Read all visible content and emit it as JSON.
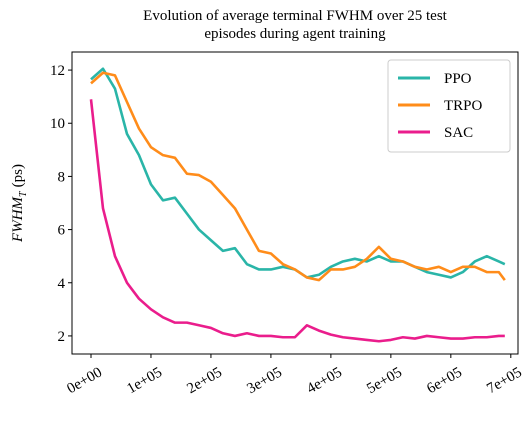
{
  "chart_data": {
    "type": "line",
    "title": [
      "Evolution of average terminal FWHM over 25 test",
      "episodes during agent training"
    ],
    "ylabel": [
      "FWHM",
      "T",
      "(ps)"
    ],
    "x": [
      0,
      20000,
      40000,
      60000,
      80000,
      100000,
      120000,
      140000,
      160000,
      180000,
      200000,
      220000,
      240000,
      260000,
      280000,
      300000,
      320000,
      340000,
      360000,
      380000,
      400000,
      420000,
      440000,
      460000,
      480000,
      500000,
      520000,
      540000,
      560000,
      580000,
      600000,
      620000,
      640000,
      660000,
      680000,
      690000
    ],
    "series": [
      {
        "name": "PPO",
        "color": "#2ab5a8",
        "values": [
          11.65,
          12.05,
          11.3,
          9.6,
          8.8,
          7.7,
          7.1,
          7.2,
          6.6,
          6.0,
          5.6,
          5.2,
          5.3,
          4.7,
          4.5,
          4.5,
          4.6,
          4.5,
          4.2,
          4.3,
          4.6,
          4.8,
          4.9,
          4.8,
          5.0,
          4.8,
          4.8,
          4.6,
          4.4,
          4.3,
          4.2,
          4.4,
          4.8,
          5.0,
          4.8,
          4.7
        ]
      },
      {
        "name": "TRPO",
        "color": "#ff8c1a",
        "values": [
          11.5,
          11.9,
          11.8,
          10.8,
          9.8,
          9.1,
          8.8,
          8.7,
          8.1,
          8.05,
          7.8,
          7.3,
          6.8,
          6.0,
          5.2,
          5.1,
          4.7,
          4.5,
          4.2,
          4.1,
          4.5,
          4.5,
          4.6,
          4.9,
          5.35,
          4.9,
          4.8,
          4.6,
          4.5,
          4.6,
          4.4,
          4.6,
          4.6,
          4.4,
          4.4,
          4.1
        ]
      },
      {
        "name": "SAC",
        "color": "#ea1d8c",
        "values": [
          10.9,
          6.8,
          5.0,
          4.0,
          3.4,
          3.0,
          2.7,
          2.5,
          2.5,
          2.4,
          2.3,
          2.1,
          2.0,
          2.1,
          2.0,
          2.0,
          1.95,
          1.95,
          2.4,
          2.2,
          2.05,
          1.95,
          1.9,
          1.85,
          1.8,
          1.85,
          1.95,
          1.9,
          2.0,
          1.95,
          1.9,
          1.9,
          1.95,
          1.95,
          2.0,
          2.0
        ]
      }
    ],
    "xlim": [
      -31667,
      712000
    ],
    "ylim": [
      1.32,
      12.68
    ],
    "xticks": [
      {
        "value": 0,
        "label": "0e+00"
      },
      {
        "value": 100000,
        "label": "1e+05"
      },
      {
        "value": 200000,
        "label": "2e+05"
      },
      {
        "value": 300000,
        "label": "3e+05"
      },
      {
        "value": 400000,
        "label": "4e+05"
      },
      {
        "value": 500000,
        "label": "5e+05"
      },
      {
        "value": 600000,
        "label": "6e+05"
      },
      {
        "value": 700000,
        "label": "7e+05"
      }
    ],
    "yticks": [
      2,
      4,
      6,
      8,
      10,
      12
    ],
    "legend": "upper right"
  }
}
